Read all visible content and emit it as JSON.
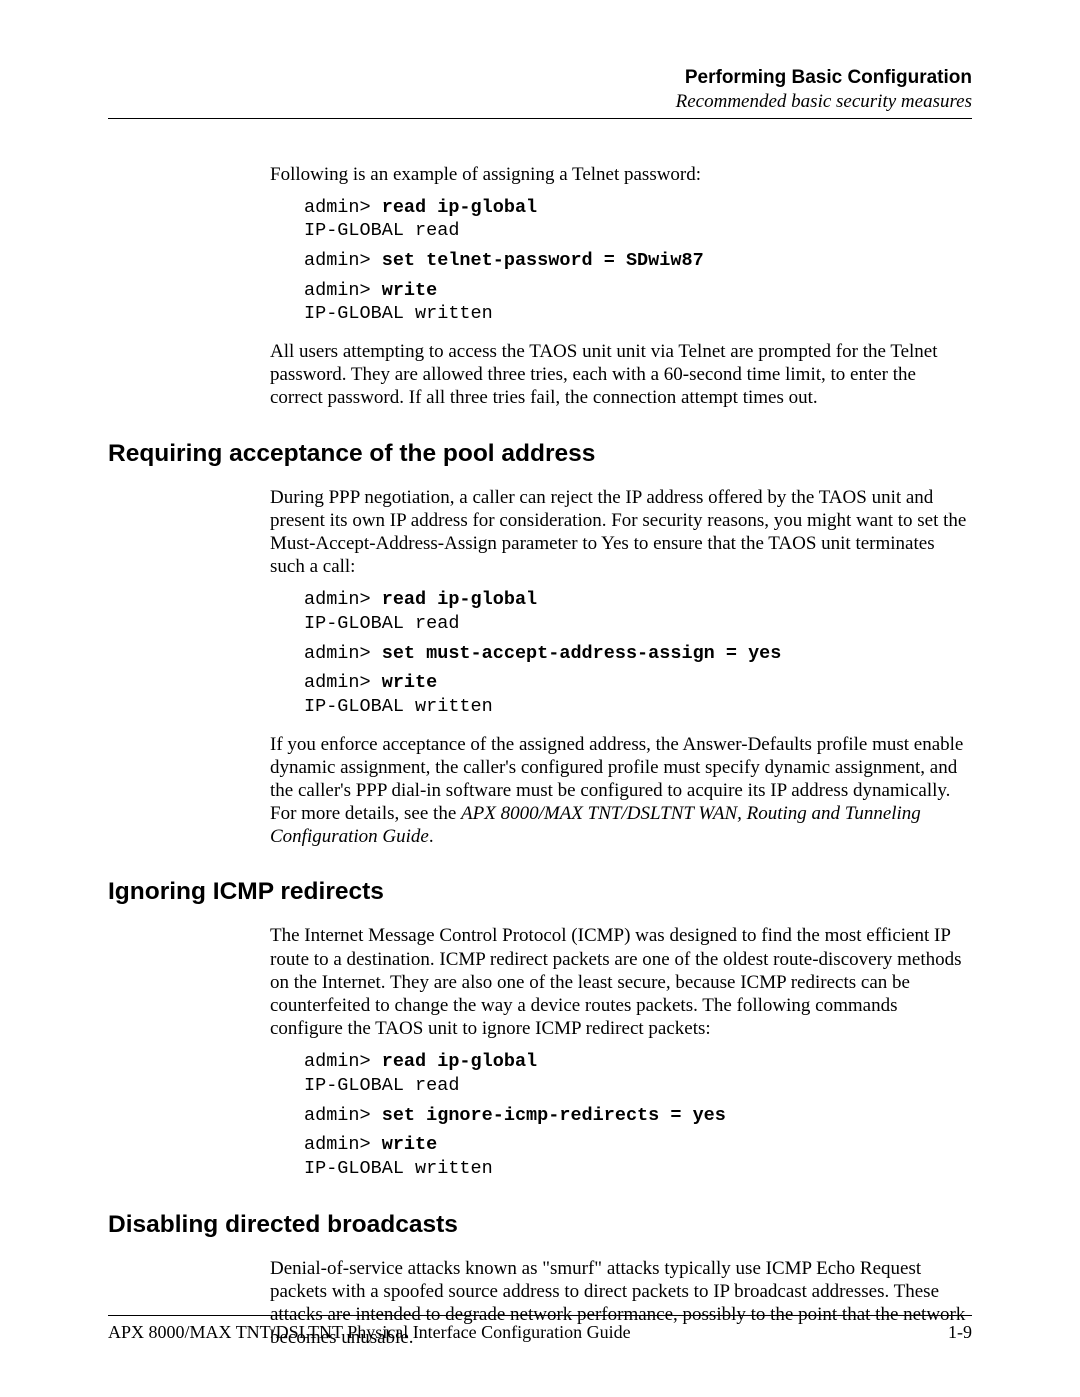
{
  "header": {
    "chapter_title": "Performing Basic Configuration",
    "section_subtitle": "Recommended basic security measures"
  },
  "intro_para": "Following is an example of assigning a Telnet password:",
  "code1": {
    "l1_prompt": "admin> ",
    "l1_cmd": "read ip-global",
    "l2": "IP-GLOBAL read",
    "l3_prompt": "admin> ",
    "l3_cmd": "set telnet-password = SDwiw87",
    "l4_prompt": "admin> ",
    "l4_cmd": "write",
    "l5": "IP-GLOBAL written"
  },
  "para_after_code1": "All users attempting to access the TAOS unit unit via Telnet are prompted for the Telnet password. They are allowed three tries, each with a 60-second time limit, to enter the correct password. If all three tries fail, the connection attempt times out.",
  "sec1": {
    "title": "Requiring acceptance of the pool address",
    "para": "During PPP negotiation, a caller can reject the IP address offered by the TAOS unit and present its own IP address for consideration. For security reasons, you might want to set the Must-Accept-Address-Assign parameter to Yes to ensure that the TAOS unit terminates such a call:",
    "code": {
      "l1_prompt": "admin> ",
      "l1_cmd": "read ip-global",
      "l2": "IP-GLOBAL read",
      "l3_prompt": "admin> ",
      "l3_cmd": "set must-accept-address-assign = yes",
      "l4_prompt": "admin> ",
      "l4_cmd": "write",
      "l5": "IP-GLOBAL written"
    },
    "para2a": "If you enforce acceptance of the assigned address, the Answer-Defaults profile must enable dynamic assignment, the caller's configured profile must specify dynamic assignment, and the caller's PPP dial-in software must be configured to acquire its IP address dynamically. For more details, see the ",
    "para2_ref": "APX 8000/MAX TNT/DSLTNT WAN, Routing and Tunneling Configuration Guide",
    "para2b": "."
  },
  "sec2": {
    "title": "Ignoring ICMP redirects",
    "para": "The Internet Message Control Protocol (ICMP) was designed to find the most efficient IP route to a destination. ICMP redirect packets are one of the oldest route-discovery methods on the Internet. They are also one of the least secure, because ICMP redirects can be counterfeited to change the way a device routes packets. The following commands configure the TAOS unit to ignore ICMP redirect packets:",
    "code": {
      "l1_prompt": "admin> ",
      "l1_cmd": "read ip-global",
      "l2": "IP-GLOBAL read",
      "l3_prompt": "admin> ",
      "l3_cmd": "set ignore-icmp-redirects = yes",
      "l4_prompt": "admin> ",
      "l4_cmd": "write",
      "l5": "IP-GLOBAL written"
    }
  },
  "sec3": {
    "title": "Disabling directed broadcasts",
    "para": "Denial-of-service attacks known as \"smurf\" attacks typically use ICMP Echo Request packets with a spoofed source address to direct packets to IP broadcast addresses. These attacks are intended to degrade network performance, possibly to the point that the network becomes unusable."
  },
  "footer": {
    "book_title": "APX 8000/MAX TNT/DSLTNT Physical Interface Configuration Guide",
    "page_number": "1-9"
  },
  "style": {
    "page_bg": "#ffffff",
    "text_color": "#000000",
    "rule_color": "#000000",
    "body_font": "Times New Roman",
    "heading_font": "Arial",
    "code_font": "Courier New",
    "body_fontsize_pt": 14,
    "heading_fontsize_pt": 18,
    "code_fontsize_pt": 14
  }
}
